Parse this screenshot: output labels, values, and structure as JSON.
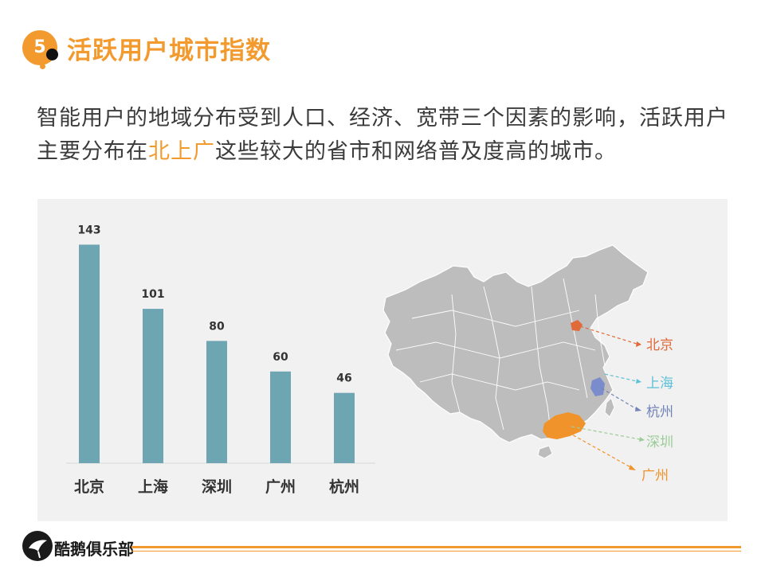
{
  "header": {
    "badge_number": "5",
    "title": "活跃用户城市指数"
  },
  "intro": {
    "text_before": "智能用户的地域分布受到人口、经济、宽带三个因素的影响，活跃用户主要分布在",
    "highlight": "北上广",
    "text_after": "这些较大的省市和网络普及度高的城市。"
  },
  "chart_data": {
    "type": "bar",
    "categories": [
      "北京",
      "上海",
      "深圳",
      "广州",
      "杭州"
    ],
    "values": [
      143,
      101,
      80,
      60,
      46
    ],
    "title": "",
    "xlabel": "",
    "ylabel": "",
    "ylim": [
      0,
      150
    ],
    "bar_color": "#6da5b3",
    "grid": false
  },
  "map": {
    "labels": [
      {
        "name": "北京",
        "color": "#e06a3a"
      },
      {
        "name": "上海",
        "color": "#5bc0d8"
      },
      {
        "name": "杭州",
        "color": "#7283b8"
      },
      {
        "name": "深圳",
        "color": "#9ccc98"
      },
      {
        "name": "广州",
        "color": "#f0932a"
      }
    ]
  },
  "footer": {
    "brand": "酷鹅俱乐部"
  },
  "colors": {
    "accent": "#f39a2e",
    "panel_bg": "#f1f1f1",
    "map_fill": "#bdbdbd"
  }
}
